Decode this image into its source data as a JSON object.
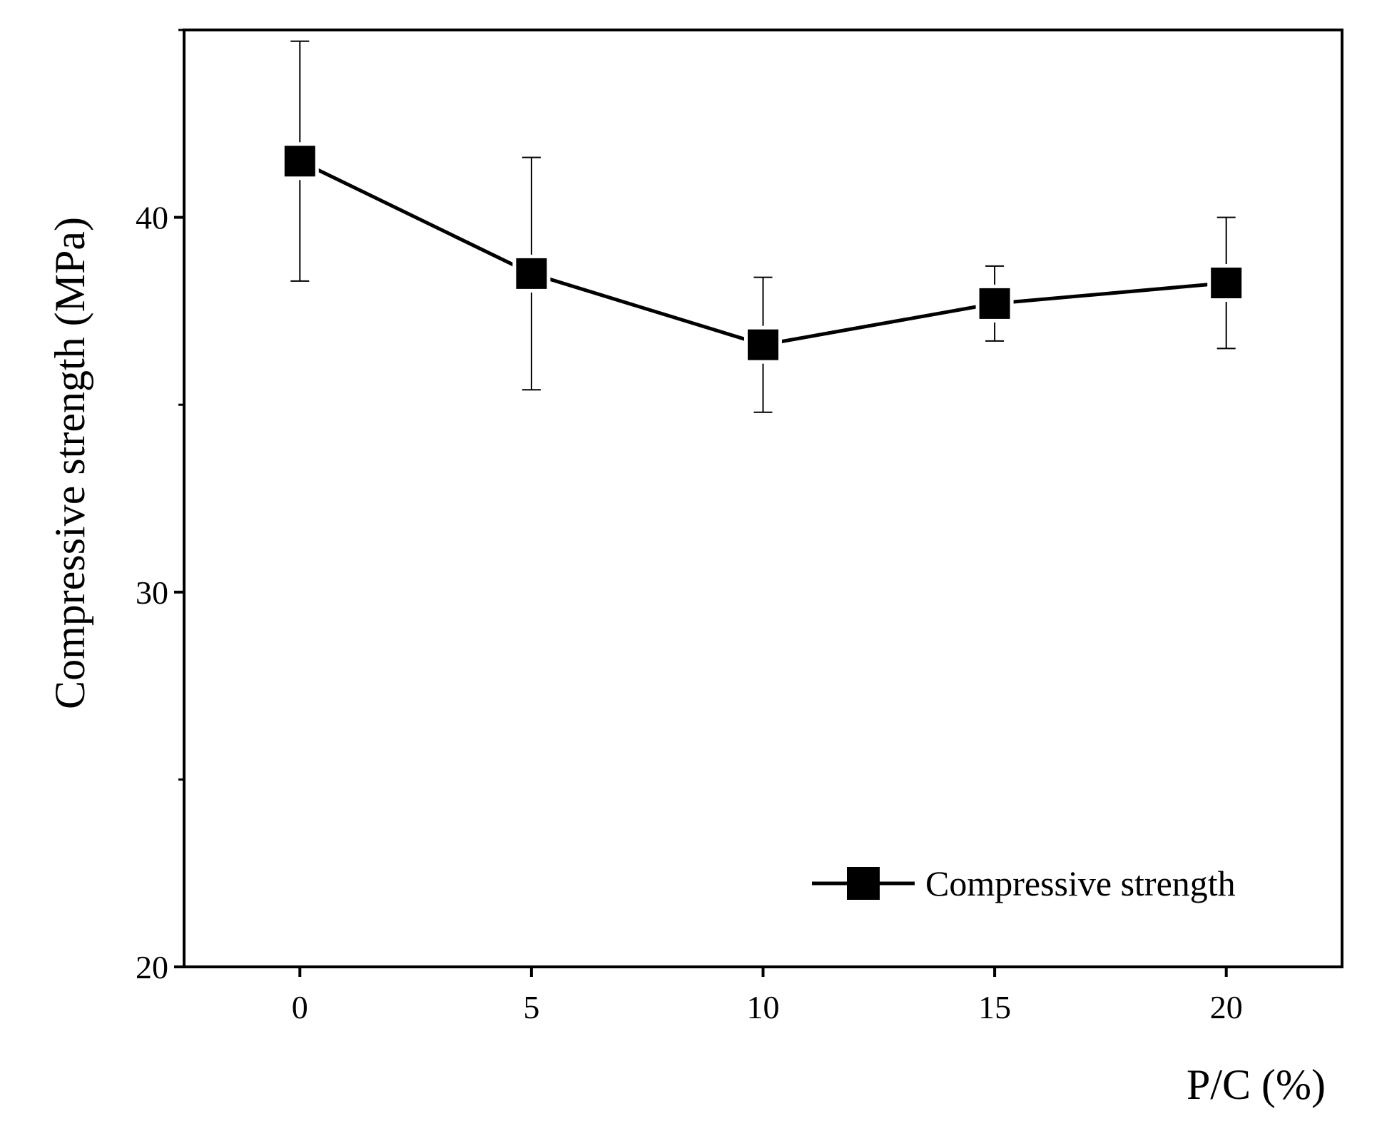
{
  "chart_data": {
    "type": "line",
    "title": "",
    "xlabel": "P/C (%)",
    "ylabel": "Compressive strength (MPa)",
    "x": [
      0,
      5,
      10,
      15,
      20
    ],
    "xticks": [
      "0",
      "5",
      "10",
      "15",
      "20"
    ],
    "xlim": [
      -2.5,
      22.5
    ],
    "ylim": [
      20,
      45
    ],
    "yticks": [
      "20",
      "30",
      "40"
    ],
    "minor_yticks": [
      25,
      35,
      45
    ],
    "grid": false,
    "legend_position": "bottom-right",
    "series": [
      {
        "name": "Compressive strength",
        "values": [
          41.5,
          38.5,
          36.6,
          37.7,
          38.25
        ],
        "error_upper": [
          44.7,
          41.6,
          38.4,
          38.7,
          40.0
        ],
        "error_lower": [
          38.3,
          35.4,
          34.8,
          36.7,
          36.5
        ],
        "marker": "square",
        "color": "#000000"
      }
    ]
  }
}
